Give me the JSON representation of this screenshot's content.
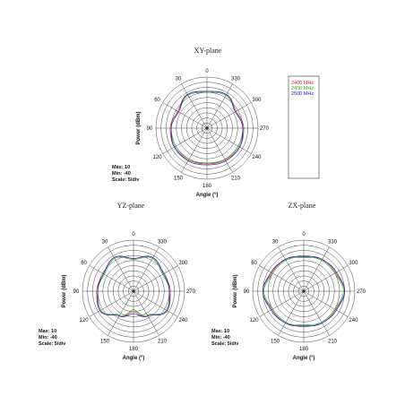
{
  "chart_data": [
    {
      "type": "polar",
      "title": "XY-plane",
      "ylabel": "Power  (dBm)",
      "xlabel": "Angle  (°)",
      "angle_ticks": [
        "0",
        "30",
        "60",
        "90",
        "120",
        "150",
        "180",
        "210",
        "240",
        "270",
        "300",
        "330"
      ],
      "stats": {
        "max": "Max: 10",
        "min": "Min: -40",
        "scale": "Scale: 5/div"
      },
      "rlim": [
        -40,
        10
      ],
      "grid": true,
      "legend": {
        "placement": "right",
        "entries": [
          {
            "name": "2400 MHz",
            "color": "#e02020"
          },
          {
            "name": "2450 MHz",
            "color": "#20b020"
          },
          {
            "name": "2500 MHz",
            "color": "#2020d0"
          }
        ]
      },
      "series": [
        {
          "name": "2400 MHz",
          "color": "#e02020",
          "angles": [
            0,
            30,
            60,
            90,
            120,
            150,
            180,
            210,
            240,
            270,
            300,
            330
          ],
          "values": [
            -4,
            -2,
            -7,
            -4,
            -3,
            -4,
            -5,
            -4,
            -3,
            -4,
            -7,
            -2
          ]
        },
        {
          "name": "2450 MHz",
          "color": "#20b020",
          "angles": [
            0,
            30,
            60,
            90,
            120,
            150,
            180,
            210,
            240,
            270,
            300,
            330
          ],
          "values": [
            -5,
            -3,
            -8,
            -5,
            -4,
            -5,
            -6,
            -5,
            -4,
            -5,
            -8,
            -3
          ]
        },
        {
          "name": "2500 MHz",
          "color": "#2020d0",
          "angles": [
            0,
            30,
            60,
            90,
            120,
            150,
            180,
            210,
            240,
            270,
            300,
            330
          ],
          "values": [
            -4,
            -2,
            -8,
            -5,
            -3,
            -3,
            -4,
            -3,
            -3,
            -5,
            -8,
            -2
          ]
        }
      ]
    },
    {
      "type": "polar",
      "title": "YZ-plane",
      "ylabel": "Power  (dBm)",
      "xlabel": "Angle  (°)",
      "angle_ticks": [
        "0",
        "30",
        "60",
        "90",
        "120",
        "150",
        "180",
        "210",
        "240",
        "270",
        "300",
        "330"
      ],
      "stats": {
        "max": "Max: 10",
        "min": "Min: -40",
        "scale": "Scale: 5/div"
      },
      "rlim": [
        -40,
        10
      ],
      "grid": true,
      "series": [
        {
          "name": "2400 MHz",
          "color": "#e02020",
          "angles": [
            0,
            30,
            60,
            90,
            120,
            150,
            180,
            210,
            240,
            270,
            300,
            330
          ],
          "values": [
            -8,
            -2,
            -6,
            -4,
            -2,
            -12,
            -20,
            -12,
            -2,
            -4,
            -6,
            -2
          ]
        },
        {
          "name": "2450 MHz",
          "color": "#20b020",
          "angles": [
            0,
            30,
            60,
            90,
            120,
            150,
            180,
            210,
            240,
            270,
            300,
            330
          ],
          "values": [
            -9,
            -3,
            -7,
            -5,
            -3,
            -13,
            -22,
            -13,
            -3,
            -5,
            -7,
            -3
          ]
        },
        {
          "name": "2500 MHz",
          "color": "#2020d0",
          "angles": [
            0,
            30,
            60,
            90,
            120,
            150,
            180,
            210,
            240,
            270,
            300,
            330
          ],
          "values": [
            -8,
            -2,
            -6,
            -5,
            -2,
            -12,
            -18,
            -12,
            -2,
            -5,
            -6,
            -2
          ]
        }
      ]
    },
    {
      "type": "polar",
      "title": "ZX-plane",
      "ylabel": "Power  (dBm)",
      "xlabel": "Angle  (°)",
      "angle_ticks": [
        "0",
        "30",
        "60",
        "90",
        "120",
        "150",
        "180",
        "210",
        "240",
        "270",
        "300",
        "330"
      ],
      "stats": {
        "max": "Max: 10",
        "min": "Min: -40",
        "scale": "Scale: 5/div"
      },
      "rlim": [
        -40,
        10
      ],
      "grid": true,
      "series": [
        {
          "name": "2400 MHz",
          "color": "#e02020",
          "angles": [
            0,
            30,
            60,
            90,
            120,
            150,
            180,
            210,
            240,
            270,
            300,
            330
          ],
          "values": [
            -6,
            -4,
            -4,
            0,
            -4,
            -4,
            -6,
            -4,
            -4,
            0,
            -4,
            -4
          ]
        },
        {
          "name": "2450 MHz",
          "color": "#20b020",
          "angles": [
            0,
            30,
            60,
            90,
            120,
            150,
            180,
            210,
            240,
            270,
            300,
            330
          ],
          "values": [
            -7,
            -5,
            -5,
            -1,
            -5,
            -5,
            -7,
            -5,
            -5,
            -1,
            -5,
            -5
          ]
        },
        {
          "name": "2500 MHz",
          "color": "#2020d0",
          "angles": [
            0,
            30,
            60,
            90,
            120,
            150,
            180,
            210,
            240,
            270,
            300,
            330
          ],
          "values": [
            -6,
            -4,
            -3,
            0,
            -3,
            -4,
            -6,
            -4,
            -3,
            0,
            -3,
            -4
          ]
        }
      ]
    }
  ]
}
